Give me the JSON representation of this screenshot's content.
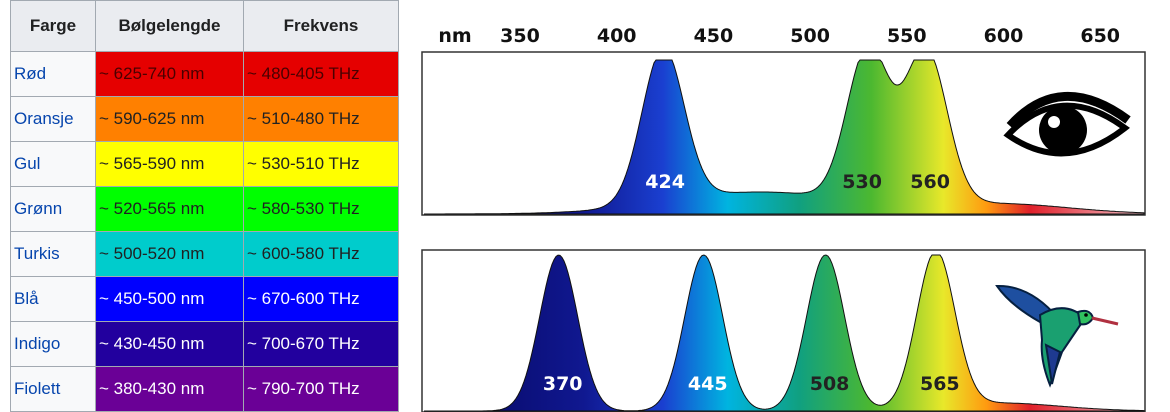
{
  "table": {
    "header": [
      "Farge",
      "Bølgelengde",
      "Frekvens"
    ],
    "rows": [
      [
        "Rød",
        "~ 625-740 nm",
        "~ 480-405 THz"
      ],
      [
        "Oransje",
        "~ 590-625 nm",
        "~ 510-480 THz"
      ],
      [
        "Gul",
        "~ 565-590 nm",
        "~ 530-510 THz"
      ],
      [
        "Grønn",
        "~ 520-565 nm",
        "~ 580-530 THz"
      ],
      [
        "Turkis",
        "~ 500-520 nm",
        "~ 600-580 THz"
      ],
      [
        "Blå",
        "~ 450-500 nm",
        "~ 670-600 THz"
      ],
      [
        "Indigo",
        "~ 430-450 nm",
        "~ 700-670 THz"
      ],
      [
        "Fiolett",
        "~ 380-430 nm",
        "~ 790-700 THz"
      ]
    ]
  },
  "diagram": {
    "axis_unit": "nm",
    "axis_ticks": [
      350,
      400,
      450,
      500,
      550,
      600,
      650
    ],
    "human_peaks": [
      424,
      530,
      560
    ],
    "bird_peaks": [
      370,
      445,
      508,
      565
    ]
  }
}
